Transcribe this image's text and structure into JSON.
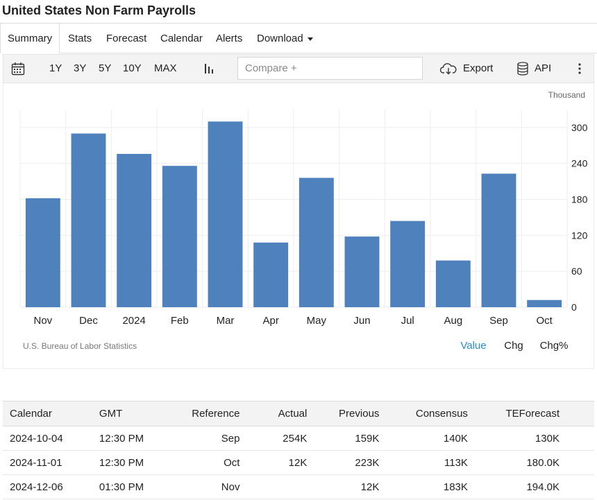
{
  "page": {
    "title": "United States Non Farm Payrolls"
  },
  "tabs": [
    {
      "label": "Summary"
    },
    {
      "label": "Stats"
    },
    {
      "label": "Forecast"
    },
    {
      "label": "Calendar"
    },
    {
      "label": "Alerts"
    },
    {
      "label": "Download"
    }
  ],
  "toolbar": {
    "ranges": [
      "1Y",
      "3Y",
      "5Y",
      "10Y",
      "MAX"
    ],
    "compare_placeholder": "Compare +",
    "export_label": "Export",
    "api_label": "API",
    "icons": [
      "calendar-icon",
      "bar-chart-icon",
      "cloud-download-icon",
      "database-icon",
      "more-vertical-icon"
    ]
  },
  "chart_data": {
    "type": "bar",
    "unit": "Thousand",
    "categories": [
      "Nov",
      "Dec",
      "2024",
      "Feb",
      "Mar",
      "Apr",
      "May",
      "Jun",
      "Jul",
      "Aug",
      "Sep",
      "Oct"
    ],
    "values": [
      182,
      290,
      256,
      236,
      310,
      108,
      216,
      118,
      144,
      78,
      223,
      12
    ],
    "yticks": [
      0,
      60,
      120,
      180,
      240,
      300
    ],
    "ylim": [
      0,
      330
    ],
    "color": "#4f81bd",
    "source": "U.S. Bureau of Labor Statistics",
    "grid": true,
    "legend": null
  },
  "chart_options": [
    {
      "label": "Value",
      "active": true
    },
    {
      "label": "Chg",
      "active": false
    },
    {
      "label": "Chg%",
      "active": false
    }
  ],
  "table": {
    "headers": [
      "Calendar",
      "GMT",
      "Reference",
      "Actual",
      "Previous",
      "Consensus",
      "TEForecast"
    ],
    "rows": [
      [
        "2024-10-04",
        "12:30 PM",
        "Sep",
        "254K",
        "159K",
        "140K",
        "130K"
      ],
      [
        "2024-11-01",
        "12:30 PM",
        "Oct",
        "12K",
        "223K",
        "113K",
        "180.0K"
      ],
      [
        "2024-12-06",
        "01:30 PM",
        "Nov",
        "",
        "12K",
        "183K",
        "194.0K"
      ]
    ]
  },
  "colors": {
    "accent": "#2a8ad4",
    "bar": "#4f81bd"
  }
}
